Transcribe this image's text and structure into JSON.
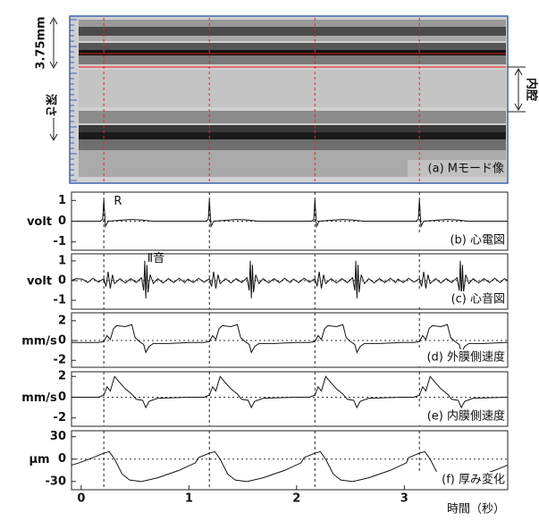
{
  "mmode": {
    "label": "(a) Mモード像",
    "scale_label": "3.75mm",
    "depth_label": "深さ",
    "lumen_label": "内腔"
  },
  "r_wave_times": [
    0.21,
    1.19,
    2.17,
    3.14
  ],
  "x_axis": {
    "xlim": [
      -0.09,
      3.96
    ],
    "xticks": [
      0,
      1,
      2,
      3
    ],
    "label": "時間（秒）"
  },
  "chart_data": [
    {
      "type": "line",
      "panel_label": "(b) 心電図",
      "ylabel": "volt",
      "annotation": "R",
      "ylim": [
        -1.4,
        1.4
      ],
      "yticks": [
        -1,
        0,
        1
      ],
      "series": [
        {
          "color": "#111111",
          "x": [
            -0.09,
            0.18,
            0.2,
            0.21,
            0.225,
            0.25,
            0.46,
            0.56,
            0.66,
            1.16,
            1.18,
            1.19,
            1.205,
            1.23,
            1.44,
            1.54,
            1.64,
            2.14,
            2.16,
            2.17,
            2.185,
            2.21,
            2.42,
            2.52,
            2.62,
            3.11,
            3.13,
            3.14,
            3.155,
            3.18,
            3.39,
            3.49,
            3.59,
            3.96
          ],
          "values": [
            0,
            0,
            0.1,
            1.05,
            -0.25,
            0,
            0.08,
            0.06,
            0,
            0,
            0.1,
            1.05,
            -0.25,
            0,
            0.08,
            0.06,
            0,
            0,
            0.1,
            1.05,
            -0.25,
            0,
            0.08,
            0.06,
            0,
            0,
            0.1,
            1.05,
            -0.25,
            0,
            0.08,
            0.06,
            0,
            0
          ]
        }
      ]
    },
    {
      "type": "line",
      "panel_label": "(c) 心音図",
      "ylabel": "volt",
      "annotation": "Ⅱ音",
      "ylim": [
        -1.45,
        1.36
      ],
      "yticks": [
        -1,
        0,
        1
      ],
      "series": [
        {
          "color": "#111111",
          "x": [
            -0.09,
            -0.05,
            0.01,
            0.06,
            0.11,
            0.16,
            0.21,
            0.23,
            0.25,
            0.27,
            0.29,
            0.31,
            0.36,
            0.41,
            0.46,
            0.51,
            0.56,
            0.58,
            0.59,
            0.6,
            0.61,
            0.62,
            0.64,
            0.67,
            0.71,
            0.76,
            0.81,
            0.86,
            0.91,
            0.96,
            0.99,
            1.04,
            1.09,
            1.14,
            1.19,
            1.21,
            1.23,
            1.25,
            1.27,
            1.29,
            1.34,
            1.39,
            1.44,
            1.49,
            1.54,
            1.56,
            1.57,
            1.58,
            1.59,
            1.6,
            1.62,
            1.65,
            1.69,
            1.74,
            1.79,
            1.84,
            1.89,
            1.94,
            1.97,
            2.02,
            2.07,
            2.12,
            2.17,
            2.19,
            2.21,
            2.23,
            2.25,
            2.27,
            2.32,
            2.37,
            2.42,
            2.47,
            2.52,
            2.54,
            2.55,
            2.56,
            2.57,
            2.58,
            2.6,
            2.63,
            2.67,
            2.72,
            2.77,
            2.82,
            2.87,
            2.92,
            2.94,
            2.99,
            3.04,
            3.09,
            3.14,
            3.16,
            3.18,
            3.2,
            3.22,
            3.24,
            3.29,
            3.34,
            3.39,
            3.44,
            3.49,
            3.51,
            3.52,
            3.53,
            3.54,
            3.55,
            3.57,
            3.6,
            3.64,
            3.69,
            3.74,
            3.79,
            3.84,
            3.89,
            3.93,
            3.96
          ],
          "values": [
            0,
            0.1,
            0.08,
            -0.1,
            0.12,
            -0.08,
            0.1,
            -0.3,
            0.45,
            -0.4,
            0.3,
            -0.15,
            0.1,
            -0.12,
            0.1,
            -0.1,
            0.15,
            -0.5,
            1.0,
            -0.9,
            0.8,
            -0.6,
            0.3,
            -0.15,
            0.1,
            -0.12,
            0.1,
            -0.1,
            0.12,
            -0.1,
            0.08,
            -0.1,
            0.12,
            -0.08,
            0.1,
            -0.3,
            0.45,
            -0.4,
            0.3,
            -0.15,
            0.1,
            -0.12,
            0.1,
            -0.1,
            0.15,
            -0.5,
            1.0,
            -0.9,
            0.8,
            -0.6,
            0.3,
            -0.15,
            0.1,
            -0.12,
            0.1,
            -0.1,
            0.12,
            -0.1,
            0.08,
            -0.1,
            0.12,
            -0.08,
            0.1,
            -0.3,
            0.45,
            -0.4,
            0.3,
            -0.15,
            0.1,
            -0.12,
            0.1,
            -0.1,
            0.15,
            -0.5,
            1.0,
            -0.9,
            0.8,
            -0.6,
            0.3,
            -0.15,
            0.1,
            -0.12,
            0.1,
            -0.1,
            0.12,
            -0.1,
            0.08,
            -0.1,
            0.12,
            -0.08,
            0.1,
            -0.3,
            0.45,
            -0.4,
            0.3,
            -0.15,
            0.1,
            -0.12,
            0.1,
            -0.1,
            0.15,
            -0.5,
            1.0,
            -0.9,
            0.8,
            -0.6,
            0.3,
            -0.15,
            0.1,
            -0.12,
            0.1,
            -0.1,
            0.12,
            -0.1,
            0.1,
            0
          ]
        }
      ]
    },
    {
      "type": "line",
      "panel_label": "(d) 外膜側速度",
      "ylabel": "mm/s",
      "ylim": [
        -2.7,
        2.8
      ],
      "yticks": [
        -2,
        0,
        2
      ],
      "series": [
        {
          "color": "#111111",
          "x": [
            -0.09,
            0.16,
            0.21,
            0.24,
            0.27,
            0.3,
            0.33,
            0.41,
            0.47,
            0.5,
            0.54,
            0.58,
            0.6,
            0.63,
            0.67,
            0.81,
            1.01,
            1.14,
            1.19,
            1.22,
            1.25,
            1.28,
            1.31,
            1.39,
            1.45,
            1.48,
            1.52,
            1.56,
            1.58,
            1.61,
            1.65,
            1.79,
            1.99,
            2.12,
            2.17,
            2.2,
            2.23,
            2.26,
            2.29,
            2.37,
            2.43,
            2.46,
            2.5,
            2.54,
            2.56,
            2.59,
            2.63,
            2.77,
            2.97,
            3.09,
            3.14,
            3.17,
            3.2,
            3.23,
            3.26,
            3.34,
            3.4,
            3.43,
            3.47,
            3.51,
            3.53,
            3.56,
            3.6,
            3.74,
            3.94,
            3.96
          ],
          "values": [
            -0.2,
            -0.2,
            -0.1,
            0.5,
            0.1,
            1.2,
            1.5,
            1.4,
            1.6,
            0.3,
            -0.1,
            -0.4,
            -1.2,
            -0.6,
            -0.3,
            -0.3,
            -0.2,
            -0.2,
            -0.1,
            0.5,
            0.1,
            1.2,
            1.5,
            1.4,
            1.6,
            0.3,
            -0.1,
            -0.4,
            -1.2,
            -0.6,
            -0.3,
            -0.3,
            -0.2,
            -0.2,
            -0.1,
            0.5,
            0.1,
            1.2,
            1.5,
            1.4,
            1.6,
            0.3,
            -0.1,
            -0.4,
            -1.2,
            -0.6,
            -0.3,
            -0.3,
            -0.2,
            -0.2,
            -0.1,
            0.5,
            0.1,
            1.2,
            1.5,
            1.4,
            1.6,
            0.3,
            -0.1,
            -0.4,
            -1.2,
            -0.6,
            -0.3,
            -0.3,
            -0.2,
            -0.2
          ]
        }
      ]
    },
    {
      "type": "line",
      "panel_label": "(e) 内膜側速度",
      "ylabel": "mm/s",
      "ylim": [
        -2.8,
        2.45
      ],
      "yticks": [
        -2,
        0,
        2
      ],
      "series": [
        {
          "color": "#111111",
          "x": [
            -0.09,
            0.16,
            0.21,
            0.24,
            0.27,
            0.31,
            0.35,
            0.41,
            0.47,
            0.51,
            0.57,
            0.6,
            0.63,
            0.71,
            1.01,
            1.14,
            1.19,
            1.22,
            1.25,
            1.29,
            1.33,
            1.39,
            1.45,
            1.49,
            1.55,
            1.58,
            1.61,
            1.69,
            1.99,
            2.12,
            2.17,
            2.2,
            2.23,
            2.27,
            2.31,
            2.37,
            2.43,
            2.47,
            2.53,
            2.56,
            2.59,
            2.67,
            2.97,
            3.09,
            3.14,
            3.17,
            3.2,
            3.24,
            3.28,
            3.34,
            3.4,
            3.44,
            3.5,
            3.53,
            3.56,
            3.64,
            3.94,
            3.96
          ],
          "values": [
            0,
            0,
            0.2,
            1.0,
            0.6,
            2.0,
            1.5,
            0.8,
            0.3,
            -0.2,
            -0.3,
            -1.0,
            -0.4,
            -0.1,
            0,
            0,
            0.2,
            1.0,
            0.6,
            2.0,
            1.5,
            0.8,
            0.3,
            -0.2,
            -0.3,
            -1.0,
            -0.4,
            -0.1,
            0,
            0,
            0.2,
            1.0,
            0.6,
            2.0,
            1.5,
            0.8,
            0.3,
            -0.2,
            -0.3,
            -1.0,
            -0.4,
            -0.1,
            0,
            0,
            0.2,
            1.0,
            0.6,
            2.0,
            1.5,
            0.8,
            0.3,
            -0.2,
            -0.3,
            -1.0,
            -0.4,
            -0.1,
            0,
            0
          ]
        }
      ]
    },
    {
      "type": "line",
      "panel_label": "(f) 厚み変化",
      "ylabel": "μm",
      "ylim": [
        -41,
        38
      ],
      "yticks": [
        -30,
        0,
        30
      ],
      "series": [
        {
          "color": "#111111",
          "x": [
            -0.09,
            -0.02,
            0.11,
            0.21,
            0.26,
            0.31,
            0.38,
            0.45,
            0.56,
            0.71,
            0.91,
            1.06,
            1.09,
            1.19,
            1.24,
            1.29,
            1.36,
            1.43,
            1.54,
            1.69,
            1.89,
            2.04,
            2.07,
            2.17,
            2.22,
            2.27,
            2.34,
            2.41,
            2.52,
            2.67,
            2.87,
            3.02,
            3.04,
            3.14,
            3.19,
            3.24,
            3.31,
            3.38,
            3.49,
            3.64,
            3.84,
            3.96
          ],
          "values": [
            -8,
            -5,
            2,
            8,
            10,
            0,
            -20,
            -28,
            -30,
            -25,
            -15,
            -5,
            2,
            8,
            10,
            0,
            -20,
            -28,
            -30,
            -25,
            -15,
            -5,
            2,
            8,
            10,
            0,
            -20,
            -28,
            -30,
            -25,
            -15,
            -5,
            2,
            8,
            10,
            0,
            -20,
            -28,
            -30,
            -25,
            -15,
            -8
          ]
        }
      ]
    }
  ]
}
